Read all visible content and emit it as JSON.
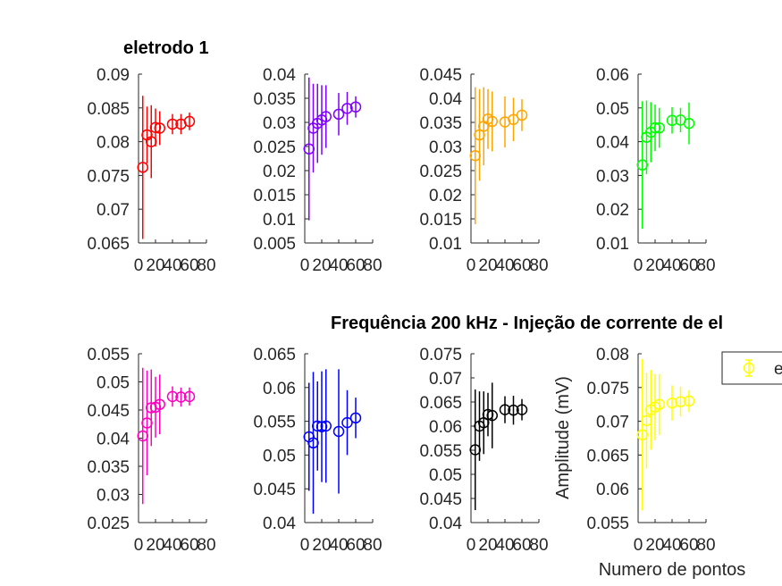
{
  "title_left": "eletrodo 1",
  "title_main": "Frequência 200 kHz - Injeção de corrente de el",
  "xlabel": "Numero de pontos",
  "ylabel": "Amplitude (mV)",
  "legend_text": "e",
  "legend_color": "#ffff00",
  "chart_data": [
    {
      "type": "scatter",
      "title": "eletrodo 1",
      "color": "#ff0000",
      "xlim": [
        0,
        80
      ],
      "xticks": [
        "0",
        "20",
        "40",
        "60",
        "80"
      ],
      "ylim": [
        0.065,
        0.09
      ],
      "yticks": [
        "0.065",
        "0.07",
        "0.075",
        "0.08",
        "0.085",
        "0.09"
      ],
      "x": [
        5,
        10,
        15,
        20,
        25,
        40,
        50,
        60
      ],
      "y": [
        0.0762,
        0.081,
        0.08,
        0.0821,
        0.082,
        0.0826,
        0.0826,
        0.083
      ],
      "err": [
        0.0106,
        0.0042,
        0.0054,
        0.0028,
        0.0025,
        0.0015,
        0.0015,
        0.0013
      ]
    },
    {
      "type": "scatter",
      "color": "#7f00ff",
      "xlim": [
        0,
        80
      ],
      "xticks": [
        "0",
        "20",
        "40",
        "60",
        "80"
      ],
      "ylim": [
        0.005,
        0.04
      ],
      "yticks": [
        "0.005",
        "0.01",
        "0.015",
        "0.02",
        "0.025",
        "0.03",
        "0.035",
        "0.04"
      ],
      "x": [
        5,
        10,
        15,
        20,
        25,
        40,
        50,
        60
      ],
      "y": [
        0.0245,
        0.0288,
        0.0298,
        0.0305,
        0.0312,
        0.0317,
        0.0329,
        0.0332
      ],
      "err": [
        0.0148,
        0.0092,
        0.0082,
        0.0072,
        0.0065,
        0.0044,
        0.0034,
        0.0022
      ]
    },
    {
      "type": "scatter",
      "color": "#ffa500",
      "xlim": [
        0,
        80
      ],
      "xticks": [
        "0",
        "20",
        "40",
        "60",
        "80"
      ],
      "ylim": [
        0.01,
        0.045
      ],
      "yticks": [
        "0.01",
        "0.015",
        "0.02",
        "0.025",
        "0.03",
        "0.035",
        "0.04",
        "0.045"
      ],
      "x": [
        5,
        10,
        15,
        20,
        25,
        40,
        50,
        60
      ],
      "y": [
        0.0281,
        0.0324,
        0.0342,
        0.0357,
        0.0352,
        0.0351,
        0.0356,
        0.0365
      ],
      "err": [
        0.0142,
        0.0095,
        0.0081,
        0.0062,
        0.0062,
        0.0053,
        0.0045,
        0.0033
      ]
    },
    {
      "type": "scatter",
      "color": "#00ff00",
      "xlim": [
        0,
        80
      ],
      "xticks": [
        "0",
        "20",
        "40",
        "60",
        "80"
      ],
      "ylim": [
        0.01,
        0.06
      ],
      "yticks": [
        "0.01",
        "0.02",
        "0.03",
        "0.04",
        "0.05",
        "0.06"
      ],
      "x": [
        5,
        10,
        15,
        20,
        25,
        40,
        50,
        60
      ],
      "y": [
        0.0331,
        0.0413,
        0.0428,
        0.0441,
        0.0441,
        0.0463,
        0.0464,
        0.0454
      ],
      "err": [
        0.0189,
        0.0109,
        0.0089,
        0.0069,
        0.0059,
        0.0039,
        0.0036,
        0.0062
      ]
    },
    {
      "type": "scatter",
      "color": "#ff00bf",
      "xlim": [
        0,
        80
      ],
      "xticks": [
        "0",
        "20",
        "40",
        "60",
        "80"
      ],
      "ylim": [
        0.025,
        0.055
      ],
      "yticks": [
        "0.025",
        "0.03",
        "0.035",
        "0.04",
        "0.045",
        "0.05",
        "0.055"
      ],
      "x": [
        5,
        10,
        15,
        20,
        25,
        40,
        50,
        60
      ],
      "y": [
        0.0404,
        0.0427,
        0.0454,
        0.0455,
        0.046,
        0.0474,
        0.0473,
        0.0474
      ],
      "err": [
        0.0121,
        0.0093,
        0.0068,
        0.0054,
        0.0053,
        0.0018,
        0.0017,
        0.0016
      ]
    },
    {
      "type": "scatter",
      "color": "#0000ff",
      "xlim": [
        0,
        80
      ],
      "xticks": [
        "0",
        "20",
        "40",
        "60",
        "80"
      ],
      "ylim": [
        0.04,
        0.065
      ],
      "yticks": [
        "0.04",
        "0.045",
        "0.05",
        "0.055",
        "0.06",
        "0.065"
      ],
      "x": [
        5,
        10,
        15,
        20,
        25,
        40,
        50,
        60
      ],
      "y": [
        0.0527,
        0.0518,
        0.0543,
        0.0542,
        0.0543,
        0.0535,
        0.0548,
        0.0555
      ],
      "err": [
        0.008,
        0.0105,
        0.0066,
        0.0082,
        0.0084,
        0.0092,
        0.0048,
        0.003
      ]
    },
    {
      "type": "scatter",
      "color": "#000000",
      "xlim": [
        0,
        80
      ],
      "xticks": [
        "0",
        "20",
        "40",
        "60",
        "80"
      ],
      "ylim": [
        0.04,
        0.075
      ],
      "yticks": [
        "0.04",
        "0.045",
        "0.05",
        "0.055",
        "0.06",
        "0.065",
        "0.07",
        "0.075"
      ],
      "x": [
        5,
        10,
        15,
        20,
        25,
        40,
        50,
        60
      ],
      "y": [
        0.0551,
        0.06,
        0.0607,
        0.0624,
        0.0622,
        0.0634,
        0.0633,
        0.0634
      ],
      "err": [
        0.0125,
        0.0072,
        0.0065,
        0.0045,
        0.0068,
        0.0028,
        0.003,
        0.0022
      ]
    },
    {
      "type": "scatter",
      "color": "#ffff00",
      "xlim": [
        0,
        80
      ],
      "xticks": [
        "0",
        "20",
        "40",
        "60",
        "80"
      ],
      "ylim": [
        0.055,
        0.08
      ],
      "yticks": [
        "0.055",
        "0.06",
        "0.065",
        "0.07",
        "0.075",
        "0.08"
      ],
      "x": [
        5,
        10,
        15,
        20,
        25,
        40,
        50,
        60
      ],
      "y": [
        0.068,
        0.0701,
        0.0717,
        0.0721,
        0.0725,
        0.0727,
        0.0729,
        0.073
      ],
      "err": [
        0.0112,
        0.0071,
        0.0059,
        0.0049,
        0.0045,
        0.0026,
        0.0022,
        0.0016
      ]
    }
  ]
}
